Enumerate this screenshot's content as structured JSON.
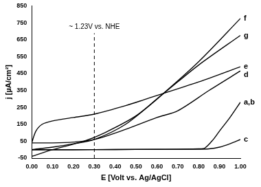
{
  "chart_data": {
    "type": "line",
    "x_label": "E [Volt vs. Ag/AgCl]",
    "y_label": "j [µA/cm²]",
    "xlim": [
      0,
      1
    ],
    "xticks": [
      {
        "value": 0,
        "label": "0.00"
      },
      {
        "value": 0.1,
        "label": "0.10"
      },
      {
        "value": 0.2,
        "label": "0.20"
      },
      {
        "value": 0.3,
        "label": "0.30"
      },
      {
        "value": 0.4,
        "label": "0.40"
      },
      {
        "value": 0.5,
        "label": "0.50"
      },
      {
        "value": 0.6,
        "label": "0.60"
      },
      {
        "value": 0.7,
        "label": "0.70"
      },
      {
        "value": 0.8,
        "label": "0.80"
      },
      {
        "value": 0.9,
        "label": "0.90"
      },
      {
        "value": 1,
        "label": "1.00"
      }
    ],
    "ylim": [
      -50,
      850
    ],
    "yticks": [
      -50,
      50,
      150,
      250,
      350,
      450,
      550,
      650,
      750,
      850
    ],
    "grid": false,
    "annotations": [
      {
        "text": "~ 1.23V vs. NHE",
        "x": 0.3,
        "y": 720,
        "line_style": "dashed"
      }
    ],
    "series": [
      {
        "name": "a,b",
        "color": "#000000",
        "line_style": "solid",
        "x": [
          0,
          0.2,
          0.4,
          0.6,
          0.8,
          0.83,
          0.87,
          0.9,
          0.95,
          1.0
        ],
        "values": [
          0,
          0,
          1,
          2,
          5,
          10,
          60,
          110,
          190,
          280
        ]
      },
      {
        "name": "c",
        "color": "#000000",
        "line_style": "solid",
        "x": [
          0,
          0.2,
          0.4,
          0.6,
          0.8,
          0.85,
          0.9,
          0.95,
          1.0
        ],
        "values": [
          0,
          0,
          1,
          2,
          3,
          5,
          15,
          35,
          60
        ]
      },
      {
        "name": "d",
        "color": "#000000",
        "line_style": "solid",
        "x": [
          0,
          0.1,
          0.2,
          0.3,
          0.45,
          0.6,
          0.7,
          0.85,
          1.0
        ],
        "values": [
          40,
          40,
          45,
          60,
          120,
          190,
          230,
          350,
          465
        ]
      },
      {
        "name": "e",
        "color": "#000000",
        "line_style": "solid",
        "x": [
          0,
          0.02,
          0.05,
          0.1,
          0.2,
          0.3,
          0.45,
          0.55,
          0.8,
          1.0
        ],
        "values": [
          40,
          110,
          150,
          170,
          190,
          210,
          260,
          300,
          400,
          490
        ]
      },
      {
        "name": "f",
        "color": "#000000",
        "line_style": "solid",
        "x": [
          0,
          0.1,
          0.2,
          0.3,
          0.45,
          0.6,
          0.8,
          1.0
        ],
        "values": [
          0,
          15,
          35,
          60,
          150,
          300,
          520,
          775
        ]
      },
      {
        "name": "g",
        "color": "#000000",
        "line_style": "solid",
        "x": [
          0,
          0.1,
          0.25,
          0.35,
          0.5,
          0.65,
          0.8,
          1.0
        ],
        "values": [
          -40,
          0,
          50,
          100,
          200,
          350,
          500,
          675
        ]
      }
    ]
  }
}
